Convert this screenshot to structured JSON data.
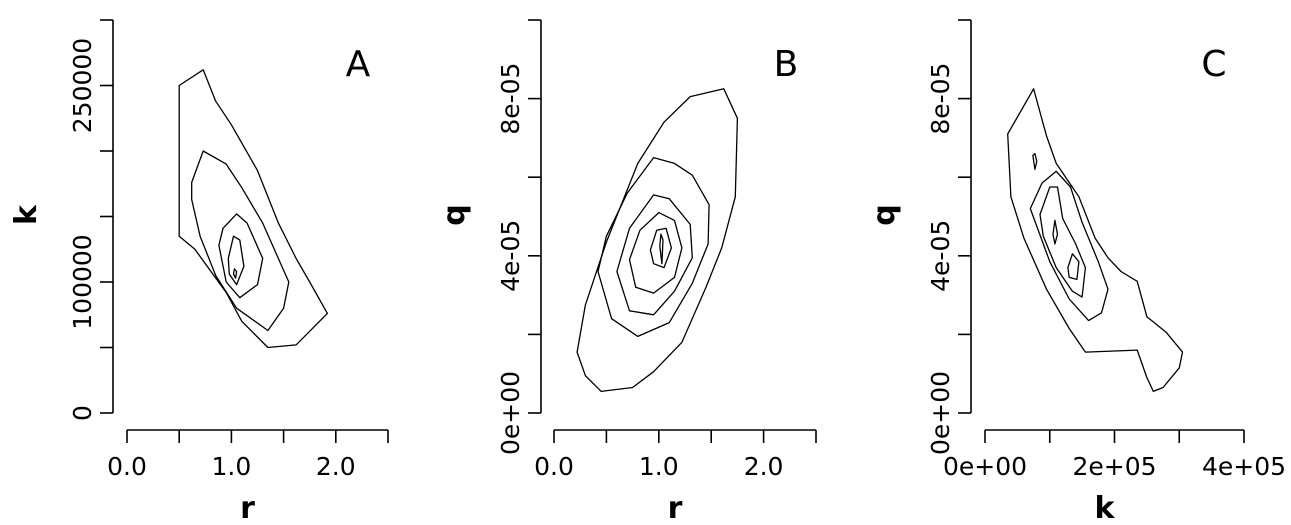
{
  "chart_data": [
    {
      "type": "contour",
      "panel_label": "A",
      "xlabel": "r",
      "ylabel": "k",
      "xlim": [
        0,
        2.5
      ],
      "ylim": [
        0,
        300000
      ],
      "xticks": [
        0,
        0.5,
        1,
        1.5,
        2,
        2.5
      ],
      "xtick_labels": [
        "0.0",
        "",
        "1.0",
        "",
        "2.0",
        ""
      ],
      "yticks": [
        0,
        50000,
        100000,
        150000,
        200000,
        250000,
        300000
      ],
      "ytick_labels": [
        "0",
        "",
        "100000",
        "",
        "",
        "250000",
        ""
      ],
      "contours": [
        [
          [
            0.5,
            135000
          ],
          [
            0.5,
            250000
          ],
          [
            0.73,
            262000
          ],
          [
            0.85,
            238000
          ],
          [
            1.0,
            220000
          ],
          [
            1.25,
            185000
          ],
          [
            1.45,
            145000
          ],
          [
            1.62,
            118000
          ],
          [
            1.75,
            100000
          ],
          [
            1.92,
            76000
          ],
          [
            1.62,
            52000
          ],
          [
            1.35,
            50000
          ],
          [
            1.1,
            70000
          ],
          [
            0.95,
            92000
          ],
          [
            0.65,
            125000
          ],
          [
            0.5,
            135000
          ]
        ],
        [
          [
            0.62,
            163000
          ],
          [
            0.62,
            176000
          ],
          [
            0.73,
            200000
          ],
          [
            0.95,
            190000
          ],
          [
            1.1,
            172000
          ],
          [
            1.3,
            145000
          ],
          [
            1.55,
            100000
          ],
          [
            1.5,
            80000
          ],
          [
            1.35,
            63000
          ],
          [
            1.05,
            80000
          ],
          [
            0.85,
            105000
          ],
          [
            0.7,
            135000
          ],
          [
            0.62,
            163000
          ]
        ],
        [
          [
            0.88,
            128000
          ],
          [
            0.92,
            141000
          ],
          [
            1.05,
            152000
          ],
          [
            1.15,
            145000
          ],
          [
            1.3,
            118000
          ],
          [
            1.25,
            98000
          ],
          [
            1.08,
            88000
          ],
          [
            0.95,
            100000
          ],
          [
            0.88,
            128000
          ]
        ],
        [
          [
            0.97,
            118000
          ],
          [
            1.02,
            135000
          ],
          [
            1.08,
            132000
          ],
          [
            1.12,
            112000
          ],
          [
            1.05,
            98000
          ],
          [
            0.98,
            106000
          ],
          [
            0.97,
            118000
          ]
        ],
        [
          [
            1.02,
            106000
          ],
          [
            1.03,
            110000
          ],
          [
            1.05,
            108000
          ],
          [
            1.04,
            103000
          ],
          [
            1.02,
            106000
          ]
        ]
      ]
    },
    {
      "type": "contour",
      "panel_label": "B",
      "xlabel": "r",
      "ylabel": "q",
      "xlim": [
        0,
        2.5
      ],
      "ylim": [
        0,
        0.0001
      ],
      "xticks": [
        0,
        0.5,
        1,
        1.5,
        2,
        2.5
      ],
      "xtick_labels": [
        "0.0",
        "",
        "1.0",
        "",
        "2.0",
        ""
      ],
      "yticks": [
        0,
        2e-05,
        4e-05,
        6e-05,
        8e-05,
        0.0001
      ],
      "ytick_labels": [
        "0e+00",
        "",
        "4e-05",
        "",
        "8e-05",
        ""
      ],
      "contours": [
        [
          [
            0.22,
            1.55e-05
          ],
          [
            0.3,
            2.75e-05
          ],
          [
            0.5,
            4.35e-05
          ],
          [
            0.8,
            6.35e-05
          ],
          [
            1.05,
            7.4e-05
          ],
          [
            1.3,
            8.05e-05
          ],
          [
            1.62,
            8.25e-05
          ],
          [
            1.75,
            7.5e-05
          ],
          [
            1.73,
            5.5e-05
          ],
          [
            1.6,
            4.2e-05
          ],
          [
            1.45,
            3.2e-05
          ],
          [
            1.22,
            1.8e-05
          ],
          [
            0.95,
            1.05e-05
          ],
          [
            0.75,
            6.5e-06
          ],
          [
            0.45,
            5.5e-06
          ],
          [
            0.3,
            9.5e-06
          ],
          [
            0.22,
            1.55e-05
          ]
        ],
        [
          [
            0.42,
            3.6e-05
          ],
          [
            0.5,
            4.5e-05
          ],
          [
            0.7,
            5.6e-05
          ],
          [
            0.95,
            6.5e-05
          ],
          [
            1.15,
            6.35e-05
          ],
          [
            1.32,
            6.05e-05
          ],
          [
            1.48,
            5.3e-05
          ],
          [
            1.47,
            4.3e-05
          ],
          [
            1.32,
            3.3e-05
          ],
          [
            1.1,
            2.3e-05
          ],
          [
            0.8,
            1.95e-05
          ],
          [
            0.55,
            2.4e-05
          ],
          [
            0.42,
            3.6e-05
          ]
        ],
        [
          [
            0.6,
            3.6e-05
          ],
          [
            0.72,
            4.7e-05
          ],
          [
            0.95,
            5.55e-05
          ],
          [
            1.1,
            5.45e-05
          ],
          [
            1.3,
            4.8e-05
          ],
          [
            1.32,
            3.95e-05
          ],
          [
            1.15,
            3.1e-05
          ],
          [
            0.95,
            2.5e-05
          ],
          [
            0.72,
            2.6e-05
          ],
          [
            0.6,
            3.6e-05
          ]
        ],
        [
          [
            0.72,
            3.9e-05
          ],
          [
            0.82,
            4.65e-05
          ],
          [
            1.0,
            5.1e-05
          ],
          [
            1.15,
            4.9e-05
          ],
          [
            1.22,
            4.2e-05
          ],
          [
            1.15,
            3.45e-05
          ],
          [
            0.95,
            3.05e-05
          ],
          [
            0.78,
            3.2e-05
          ],
          [
            0.72,
            3.9e-05
          ]
        ],
        [
          [
            0.92,
            4.15e-05
          ],
          [
            0.98,
            4.65e-05
          ],
          [
            1.07,
            4.7e-05
          ],
          [
            1.12,
            4.2e-05
          ],
          [
            1.05,
            3.7e-05
          ],
          [
            0.95,
            3.8e-05
          ],
          [
            0.92,
            4.15e-05
          ]
        ],
        [
          [
            1.01,
            4.25e-05
          ],
          [
            1.02,
            4.55e-05
          ],
          [
            1.04,
            4.4e-05
          ],
          [
            1.03,
            3.8e-05
          ],
          [
            1.01,
            4.25e-05
          ]
        ]
      ]
    },
    {
      "type": "contour",
      "panel_label": "C",
      "xlabel": "k",
      "ylabel": "q",
      "xlim": [
        0,
        400000
      ],
      "ylim": [
        0,
        0.0001
      ],
      "xticks": [
        0,
        100000,
        200000,
        300000,
        400000
      ],
      "xtick_labels": [
        "0e+00",
        "",
        "2e+05",
        "",
        "4e+05"
      ],
      "yticks": [
        0,
        2e-05,
        4e-05,
        6e-05,
        8e-05,
        0.0001
      ],
      "ytick_labels": [
        "0e+00",
        "",
        "4e-05",
        "",
        "8e-05",
        ""
      ],
      "contours": [
        [
          [
            35000,
            7.1e-05
          ],
          [
            75000,
            8.25e-05
          ],
          [
            95000,
            7.05e-05
          ],
          [
            110000,
            6.35e-05
          ],
          [
            145000,
            5.5e-05
          ],
          [
            170000,
            4.45e-05
          ],
          [
            190000,
            3.95e-05
          ],
          [
            210000,
            3.6e-05
          ],
          [
            235000,
            3.35e-05
          ],
          [
            250000,
            2.45e-05
          ],
          [
            280000,
            2.05e-05
          ],
          [
            305000,
            1.55e-05
          ],
          [
            300000,
            1.15e-05
          ],
          [
            275000,
            6.5e-06
          ],
          [
            260000,
            5.5e-06
          ],
          [
            250000,
            9e-06
          ],
          [
            235000,
            1.6e-05
          ],
          [
            155000,
            1.55e-05
          ],
          [
            130000,
            2.15e-05
          ],
          [
            95000,
            3.15e-05
          ],
          [
            60000,
            4.45e-05
          ],
          [
            40000,
            5.5e-05
          ],
          [
            35000,
            7.1e-05
          ]
        ],
        [
          [
            70000,
            5.2e-05
          ],
          [
            88000,
            5.85e-05
          ],
          [
            110000,
            6.15e-05
          ],
          [
            132000,
            5.75e-05
          ],
          [
            150000,
            4.85e-05
          ],
          [
            175000,
            3.85e-05
          ],
          [
            190000,
            3.15e-05
          ],
          [
            180000,
            2.55e-05
          ],
          [
            160000,
            2.35e-05
          ],
          [
            130000,
            2.9e-05
          ],
          [
            100000,
            3.85e-05
          ],
          [
            70000,
            5.2e-05
          ]
        ],
        [
          [
            85000,
            5.05e-05
          ],
          [
            100000,
            5.75e-05
          ],
          [
            112000,
            5.75e-05
          ],
          [
            120000,
            4.95e-05
          ],
          [
            140000,
            4.3e-05
          ],
          [
            155000,
            3.7e-05
          ],
          [
            150000,
            2.95e-05
          ],
          [
            135000,
            3.1e-05
          ],
          [
            110000,
            3.7e-05
          ],
          [
            90000,
            4.5e-05
          ],
          [
            85000,
            5.05e-05
          ]
        ],
        [
          [
            128000,
            3.7e-05
          ],
          [
            135000,
            4.05e-05
          ],
          [
            145000,
            3.85e-05
          ],
          [
            142000,
            3.4e-05
          ],
          [
            130000,
            3.45e-05
          ],
          [
            128000,
            3.7e-05
          ]
        ],
        [
          [
            105000,
            4.55e-05
          ],
          [
            108000,
            4.9e-05
          ],
          [
            112000,
            4.55e-05
          ],
          [
            108000,
            4.3e-05
          ],
          [
            105000,
            4.55e-05
          ]
        ],
        [
          [
            74000,
            6.55e-05
          ],
          [
            77000,
            6.6e-05
          ],
          [
            80000,
            6.4e-05
          ],
          [
            77000,
            6.2e-05
          ],
          [
            74000,
            6.55e-05
          ]
        ]
      ]
    }
  ]
}
